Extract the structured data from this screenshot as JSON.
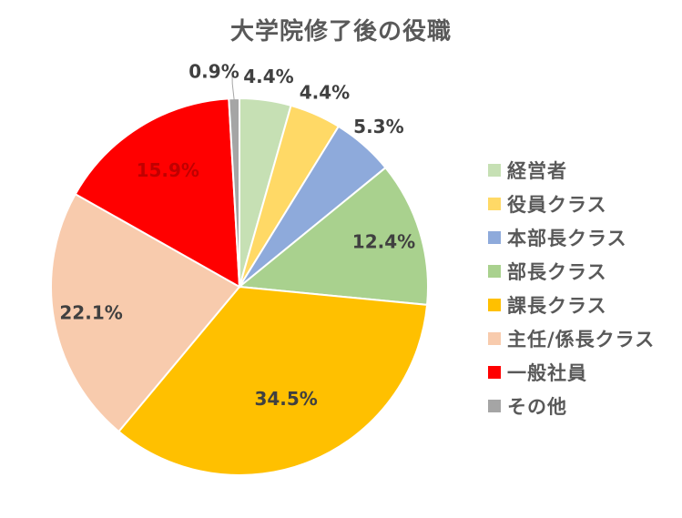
{
  "chart_data": {
    "type": "pie",
    "title": "大学院修了後の役職",
    "legend_position": "right",
    "slices": [
      {
        "label": "経営者",
        "value": 4.4,
        "display": "4.4%",
        "color": "#c6e0b4"
      },
      {
        "label": "役員クラス",
        "value": 4.4,
        "display": "4.4%",
        "color": "#ffd966"
      },
      {
        "label": "本部長クラス",
        "value": 5.3,
        "display": "5.3%",
        "color": "#8eaadb"
      },
      {
        "label": "部長クラス",
        "value": 12.4,
        "display": "12.4%",
        "color": "#a9d18e"
      },
      {
        "label": "課長クラス",
        "value": 34.5,
        "display": "34.5%",
        "color": "#ffc000"
      },
      {
        "label": "主任/係長クラス",
        "value": 22.1,
        "display": "22.1%",
        "color": "#f8cbad"
      },
      {
        "label": "一般社員",
        "value": 15.9,
        "display": "15.9%",
        "color": "#ff0000"
      },
      {
        "label": "その他",
        "value": 0.9,
        "display": "0.9%",
        "color": "#a5a5a5"
      }
    ]
  }
}
